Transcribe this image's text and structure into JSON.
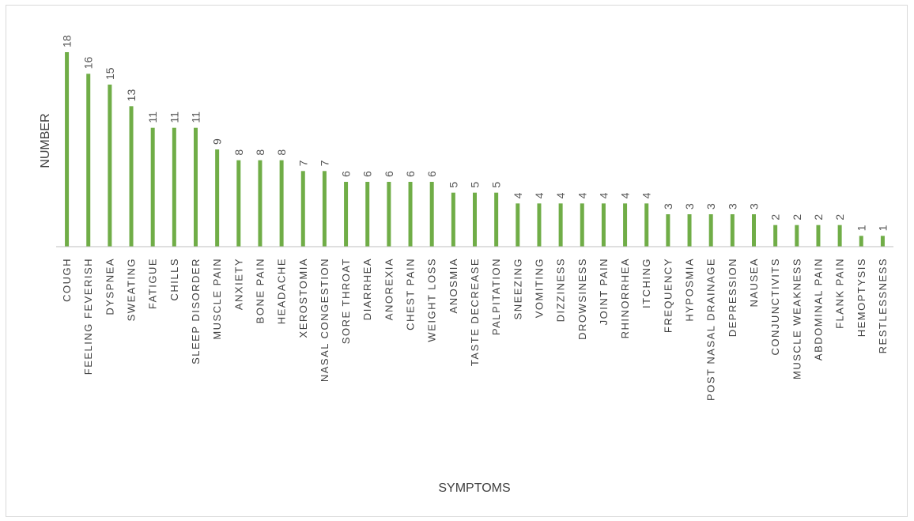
{
  "colors": {
    "bar": "#70ad47",
    "axis": "#bfbfbf",
    "text": "#404040",
    "frame": "#d9d9d9"
  },
  "chart_data": {
    "type": "bar",
    "title": "",
    "xlabel": "SYMPTOMS",
    "ylabel": "NUMBER",
    "ylim": [
      0,
      18
    ],
    "grid": false,
    "legend": "none",
    "categories": [
      "COUGH",
      "FEELING FEVERISH",
      "DYSPNEA",
      "SWEATING",
      "FATIGUE",
      "CHILLS",
      "SLEEP DISORDER",
      "MUSCLE PAIN",
      "ANXIETY",
      "BONE PAIN",
      "HEADACHE",
      "XEROSTOMIA",
      "NASAL CONGESTION",
      "SORE THROAT",
      "DIARRHEA",
      "ANOREXIA",
      "CHEST PAIN",
      "WEIGHT LOSS",
      "ANOSMIA",
      "TASTE DECREASE",
      "PALPITATION",
      "SNEEZING",
      "VOMITING",
      "DIZZINESS",
      "DROWSINESS",
      "JOINT PAIN",
      "RHINORRHEA",
      "ITCHING",
      "FREQUENCY",
      "HYPOSMIA",
      "POST NASAL DRAINAGE",
      "DEPRESSION",
      "NAUSEA",
      "CONJUNCTIVITS",
      "MUSCLE WEAKNESS",
      "ABDOMINAL PAIN",
      "FLANK PAIN",
      "HEMOPTYSIS",
      "RESTLESSNESS"
    ],
    "values": [
      18,
      16,
      15,
      13,
      11,
      11,
      11,
      9,
      8,
      8,
      8,
      7,
      7,
      6,
      6,
      6,
      6,
      6,
      5,
      5,
      5,
      4,
      4,
      4,
      4,
      4,
      4,
      4,
      3,
      3,
      3,
      3,
      3,
      2,
      2,
      2,
      2,
      1,
      1
    ]
  }
}
